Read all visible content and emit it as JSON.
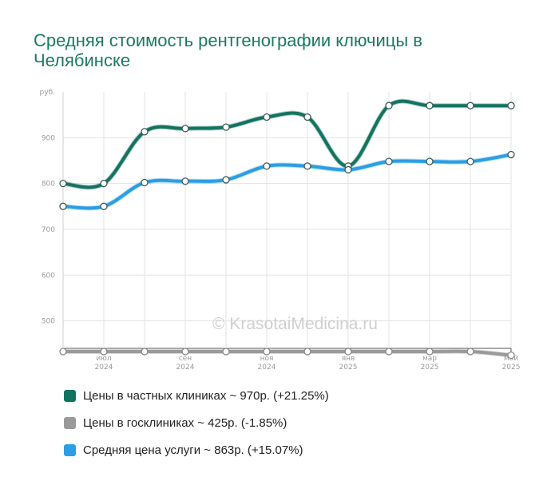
{
  "title": "Средняя стоимость рентгенографии ключицы в Челябинске",
  "watermark": "© KrasotaiMedicina.ru",
  "chart_data": {
    "type": "line",
    "title": "Средняя стоимость рентгенографии ключицы в Челябинске",
    "ylabel": "руб.",
    "ylim": [
      440,
      1000
    ],
    "yticks": [
      500,
      600,
      700,
      800,
      900
    ],
    "y_unit_label": "руб.",
    "x_months": [
      "2024-06",
      "2024-07",
      "2024-08",
      "2024-09",
      "2024-10",
      "2024-11",
      "2024-12",
      "2025-01",
      "2025-02",
      "2025-03",
      "2025-04",
      "2025-05"
    ],
    "x_ticks": [
      {
        "month": "июл",
        "year": "2024",
        "index": 1
      },
      {
        "month": "сен",
        "year": "2024",
        "index": 3
      },
      {
        "month": "ноя",
        "year": "2024",
        "index": 5
      },
      {
        "month": "янв",
        "year": "2025",
        "index": 7
      },
      {
        "month": "мар",
        "year": "2025",
        "index": 9
      },
      {
        "month": "май",
        "year": "2025",
        "index": 11
      }
    ],
    "grid": true,
    "legend_position": "bottom",
    "series": [
      {
        "name": "Цены в частных клиниках",
        "color": "#137361",
        "values": [
          800,
          800,
          913,
          920,
          923,
          945,
          945,
          838,
          970,
          970,
          970,
          970
        ]
      },
      {
        "name": "Цены в госклиниках",
        "color": "#9a9a9a",
        "values": [
          433,
          433,
          433,
          433,
          433,
          433,
          433,
          433,
          433,
          433,
          433,
          425
        ]
      },
      {
        "name": "Средняя цена услуги",
        "color": "#2c9ee3",
        "values": [
          750,
          750,
          802,
          805,
          808,
          838,
          838,
          830,
          848,
          848,
          848,
          863
        ]
      }
    ]
  },
  "legend": [
    {
      "label": "Цены в частных клиниках ~ 970р. (+21.25%)",
      "color": "#137361"
    },
    {
      "label": "Цены в госклиниках ~ 425р. (-1.85%)",
      "color": "#9a9a9a"
    },
    {
      "label": "Средняя цена услуги ~ 863р. (+15.07%)",
      "color": "#2c9ee3"
    }
  ]
}
